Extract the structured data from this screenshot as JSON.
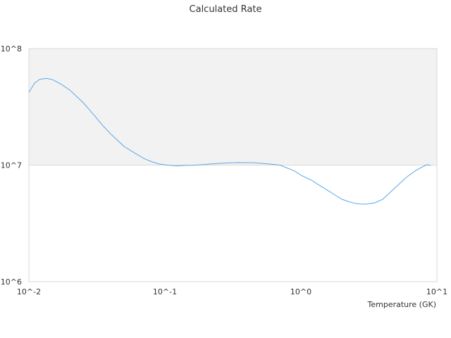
{
  "chart_data": {
    "type": "line",
    "title": "Calculated Rate",
    "xlabel": "Temperature (GK)",
    "ylabel": "",
    "xscale": "log",
    "yscale": "log",
    "xlim": [
      0.01,
      10
    ],
    "ylim": [
      1000000,
      100000000
    ],
    "x_tick_labels": [
      "10^-2",
      "10^-1",
      "10^0",
      "10^1"
    ],
    "y_tick_labels": [
      "10^6",
      "10^7",
      "10^8"
    ],
    "shaded_band": [
      10000000,
      100000000
    ],
    "grid": false,
    "legend": "none",
    "colors": {
      "line": "#5aa8e8",
      "band": "#f2f2f2",
      "border": "#d9d9d9"
    },
    "series": [
      {
        "x": [
          0.01,
          0.011,
          0.012,
          0.0135,
          0.015,
          0.0175,
          0.02,
          0.025,
          0.03,
          0.035,
          0.04,
          0.05,
          0.06,
          0.07,
          0.08,
          0.09,
          0.1,
          0.11,
          0.125,
          0.14,
          0.16,
          0.18,
          0.2,
          0.25,
          0.3,
          0.35,
          0.4,
          0.45,
          0.5,
          0.6,
          0.7,
          0.8,
          0.9,
          1.0,
          1.2,
          1.4,
          1.6,
          1.8,
          2.0,
          2.25,
          2.5,
          2.75,
          3.0,
          3.5,
          4.0,
          4.5,
          5.0,
          6.0,
          7.0,
          8.0,
          8.5,
          9.0
        ],
        "values": [
          42000000,
          50500000,
          54500000,
          55500000,
          54000000,
          49000000,
          44000000,
          34500000,
          27000000,
          21800000,
          18500000,
          14500000,
          12700000,
          11400000,
          10700000,
          10250000,
          10050000,
          9950000,
          9850000,
          9950000,
          9960000,
          10050000,
          10150000,
          10350000,
          10450000,
          10520000,
          10500000,
          10480000,
          10380000,
          10200000,
          10000000,
          9400000,
          8900000,
          8200000,
          7400000,
          6600000,
          6000000,
          5500000,
          5100000,
          4850000,
          4700000,
          4630000,
          4620000,
          4750000,
          5100000,
          5800000,
          6500000,
          7900000,
          9000000,
          9800000,
          10100000,
          9900000
        ]
      }
    ]
  }
}
